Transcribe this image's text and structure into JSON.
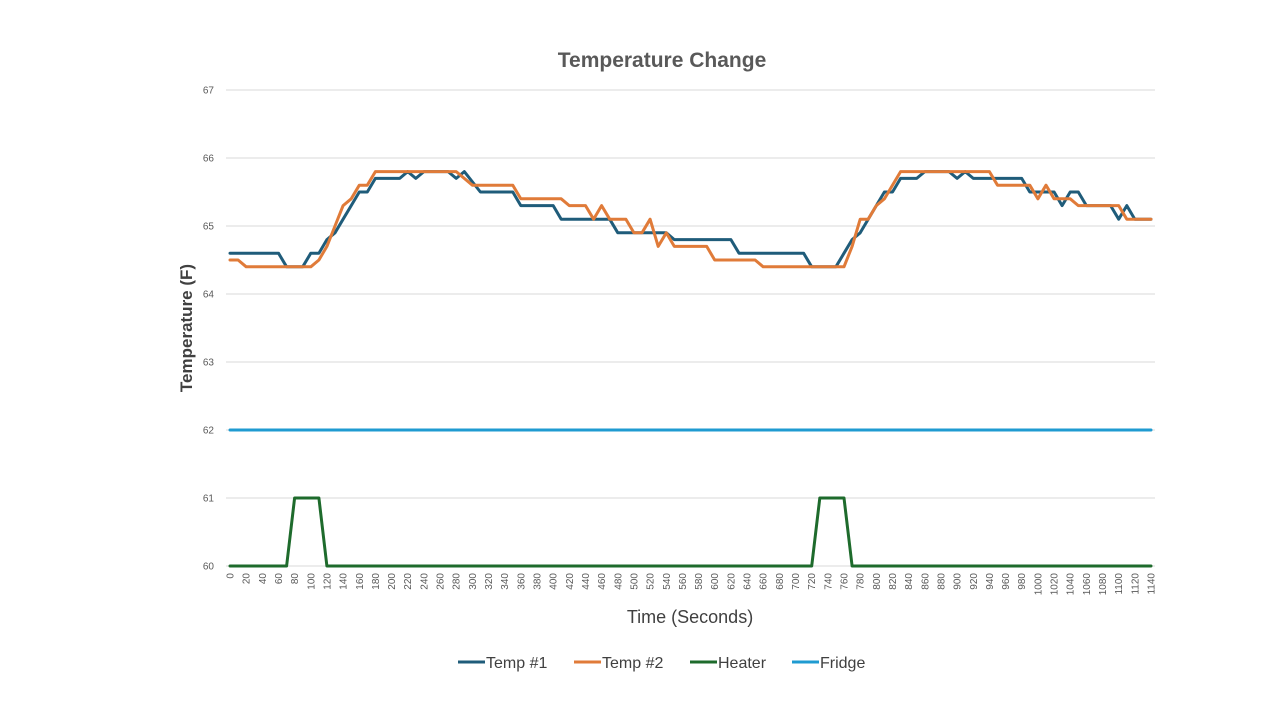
{
  "chart_data": {
    "type": "line",
    "title": "Temperature Change",
    "xlabel": "Time (Seconds)",
    "ylabel": "Temperature (F)",
    "ylim": [
      60,
      67
    ],
    "yticks": [
      "60",
      "61",
      "62",
      "63",
      "64",
      "65",
      "66",
      "67"
    ],
    "xticks": [
      "0",
      "20",
      "40",
      "60",
      "80",
      "100",
      "120",
      "140",
      "160",
      "180",
      "200",
      "220",
      "240",
      "260",
      "280",
      "300",
      "320",
      "340",
      "360",
      "380",
      "400",
      "420",
      "440",
      "460",
      "480",
      "500",
      "520",
      "540",
      "560",
      "580",
      "600",
      "620",
      "640",
      "660",
      "680",
      "700",
      "720",
      "740",
      "760",
      "780",
      "800",
      "820",
      "840",
      "860",
      "880",
      "900",
      "920",
      "940",
      "960",
      "980",
      "1000",
      "1020",
      "1040",
      "1060",
      "1080",
      "1100",
      "1120",
      "1140"
    ],
    "xlim": [
      0,
      1140
    ],
    "grid": true,
    "legend_position": "bottom",
    "series": [
      {
        "name": "Temp #1",
        "color": "#1f5c7a",
        "points": [
          [
            0,
            64.6
          ],
          [
            60,
            64.6
          ],
          [
            70,
            64.4
          ],
          [
            90,
            64.4
          ],
          [
            100,
            64.6
          ],
          [
            110,
            64.6
          ],
          [
            120,
            64.8
          ],
          [
            130,
            64.9
          ],
          [
            140,
            65.1
          ],
          [
            150,
            65.3
          ],
          [
            160,
            65.5
          ],
          [
            170,
            65.5
          ],
          [
            180,
            65.7
          ],
          [
            200,
            65.7
          ],
          [
            210,
            65.7
          ],
          [
            220,
            65.8
          ],
          [
            230,
            65.7
          ],
          [
            240,
            65.8
          ],
          [
            270,
            65.8
          ],
          [
            280,
            65.7
          ],
          [
            290,
            65.8
          ],
          [
            310,
            65.5
          ],
          [
            350,
            65.5
          ],
          [
            360,
            65.3
          ],
          [
            400,
            65.3
          ],
          [
            410,
            65.1
          ],
          [
            470,
            65.1
          ],
          [
            480,
            64.9
          ],
          [
            540,
            64.9
          ],
          [
            550,
            64.8
          ],
          [
            620,
            64.8
          ],
          [
            630,
            64.6
          ],
          [
            710,
            64.6
          ],
          [
            720,
            64.4
          ],
          [
            750,
            64.4
          ],
          [
            760,
            64.6
          ],
          [
            770,
            64.8
          ],
          [
            780,
            64.9
          ],
          [
            790,
            65.1
          ],
          [
            800,
            65.3
          ],
          [
            810,
            65.5
          ],
          [
            820,
            65.5
          ],
          [
            830,
            65.7
          ],
          [
            850,
            65.7
          ],
          [
            860,
            65.8
          ],
          [
            890,
            65.8
          ],
          [
            900,
            65.7
          ],
          [
            910,
            65.8
          ],
          [
            920,
            65.7
          ],
          [
            940,
            65.7
          ],
          [
            980,
            65.7
          ],
          [
            990,
            65.5
          ],
          [
            1020,
            65.5
          ],
          [
            1030,
            65.3
          ],
          [
            1040,
            65.5
          ],
          [
            1050,
            65.5
          ],
          [
            1060,
            65.3
          ],
          [
            1090,
            65.3
          ],
          [
            1100,
            65.1
          ],
          [
            1110,
            65.3
          ],
          [
            1120,
            65.1
          ],
          [
            1140,
            65.1
          ]
        ]
      },
      {
        "name": "Temp #2",
        "color": "#e07b39",
        "points": [
          [
            0,
            64.5
          ],
          [
            10,
            64.5
          ],
          [
            20,
            64.4
          ],
          [
            80,
            64.4
          ],
          [
            100,
            64.4
          ],
          [
            110,
            64.5
          ],
          [
            120,
            64.7
          ],
          [
            130,
            65.0
          ],
          [
            140,
            65.3
          ],
          [
            150,
            65.4
          ],
          [
            160,
            65.6
          ],
          [
            170,
            65.6
          ],
          [
            180,
            65.8
          ],
          [
            280,
            65.8
          ],
          [
            300,
            65.6
          ],
          [
            350,
            65.6
          ],
          [
            360,
            65.4
          ],
          [
            410,
            65.4
          ],
          [
            420,
            65.3
          ],
          [
            440,
            65.3
          ],
          [
            450,
            65.1
          ],
          [
            460,
            65.3
          ],
          [
            470,
            65.1
          ],
          [
            490,
            65.1
          ],
          [
            500,
            64.9
          ],
          [
            510,
            64.9
          ],
          [
            520,
            65.1
          ],
          [
            530,
            64.7
          ],
          [
            540,
            64.9
          ],
          [
            550,
            64.7
          ],
          [
            590,
            64.7
          ],
          [
            600,
            64.5
          ],
          [
            650,
            64.5
          ],
          [
            660,
            64.4
          ],
          [
            760,
            64.4
          ],
          [
            770,
            64.7
          ],
          [
            780,
            65.1
          ],
          [
            790,
            65.1
          ],
          [
            800,
            65.3
          ],
          [
            810,
            65.4
          ],
          [
            830,
            65.8
          ],
          [
            940,
            65.8
          ],
          [
            950,
            65.6
          ],
          [
            990,
            65.6
          ],
          [
            1000,
            65.4
          ],
          [
            1010,
            65.6
          ],
          [
            1020,
            65.4
          ],
          [
            1040,
            65.4
          ],
          [
            1050,
            65.3
          ],
          [
            1100,
            65.3
          ],
          [
            1110,
            65.1
          ],
          [
            1140,
            65.1
          ]
        ]
      },
      {
        "name": "Heater",
        "color": "#1e6b2c",
        "points": [
          [
            0,
            60
          ],
          [
            70,
            60
          ],
          [
            80,
            61
          ],
          [
            110,
            61
          ],
          [
            120,
            60
          ],
          [
            720,
            60
          ],
          [
            730,
            61
          ],
          [
            760,
            61
          ],
          [
            770,
            60
          ],
          [
            1140,
            60
          ]
        ]
      },
      {
        "name": "Fridge",
        "color": "#1f9bd1",
        "points": [
          [
            0,
            62
          ],
          [
            1140,
            62
          ]
        ]
      }
    ]
  }
}
